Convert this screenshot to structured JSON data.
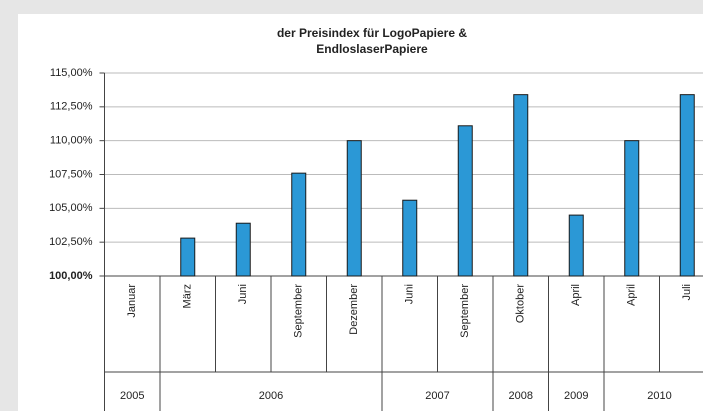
{
  "chart_data": {
    "type": "bar",
    "title": [
      "der Preisindex  für LogoPapiere &",
      "EndloslaserPapiere"
    ],
    "categories": [
      "Januar",
      "März",
      "Juni",
      "September",
      "Dezember",
      "Juni",
      "September",
      "Oktober",
      "April",
      "April",
      "Juli"
    ],
    "years": [
      "2005",
      "2006",
      "2006",
      "2006",
      "2006",
      "2007",
      "2007",
      "2008",
      "2009",
      "2010",
      "2010"
    ],
    "values": [
      100,
      102.8,
      103.9,
      107.6,
      110.0,
      105.6,
      111.1,
      113.4,
      104.5,
      110.0,
      113.4
    ],
    "color": "#2b98d6",
    "ylim": [
      100,
      115
    ],
    "yticks": [
      {
        "value": 100,
        "label": "100,00%"
      },
      {
        "value": 102.5,
        "label": "102,50%"
      },
      {
        "value": 105,
        "label": "105,00%"
      },
      {
        "value": 107.5,
        "label": "107,50%"
      },
      {
        "value": 110,
        "label": "110,00%"
      },
      {
        "value": 112.5,
        "label": "112,50%"
      },
      {
        "value": 115,
        "label": "115,00%"
      }
    ],
    "grid": true
  }
}
